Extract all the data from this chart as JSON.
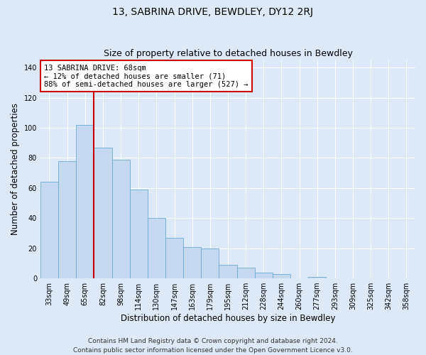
{
  "title": "13, SABRINA DRIVE, BEWDLEY, DY12 2RJ",
  "subtitle": "Size of property relative to detached houses in Bewdley",
  "xlabel": "Distribution of detached houses by size in Bewdley",
  "ylabel": "Number of detached properties",
  "categories": [
    "33sqm",
    "49sqm",
    "65sqm",
    "82sqm",
    "98sqm",
    "114sqm",
    "130sqm",
    "147sqm",
    "163sqm",
    "179sqm",
    "195sqm",
    "212sqm",
    "228sqm",
    "244sqm",
    "260sqm",
    "277sqm",
    "293sqm",
    "309sqm",
    "325sqm",
    "342sqm",
    "358sqm"
  ],
  "values": [
    64,
    78,
    102,
    87,
    79,
    59,
    40,
    27,
    21,
    20,
    9,
    7,
    4,
    3,
    0,
    1,
    0,
    0,
    0,
    0,
    0
  ],
  "bar_color": "#c5d8f0",
  "bar_edge_color": "#6aaad4",
  "red_line_index": 2,
  "red_line_color": "#cc0000",
  "annotation_text": "13 SABRINA DRIVE: 68sqm\n← 12% of detached houses are smaller (71)\n88% of semi-detached houses are larger (527) →",
  "annotation_box_facecolor": "#ffffff",
  "annotation_box_edgecolor": "#cc0000",
  "ylim": [
    0,
    145
  ],
  "yticks": [
    0,
    20,
    40,
    60,
    80,
    100,
    120,
    140
  ],
  "footer_line1": "Contains HM Land Registry data © Crown copyright and database right 2024.",
  "footer_line2": "Contains public sector information licensed under the Open Government Licence v3.0.",
  "fig_facecolor": "#dde8f8",
  "ax_facecolor": "#dde8f8",
  "grid_color": "#ffffff",
  "title_fontsize": 10,
  "subtitle_fontsize": 9,
  "axis_label_fontsize": 8.5,
  "tick_fontsize": 7,
  "annot_fontsize": 7.5,
  "footer_fontsize": 6.5
}
